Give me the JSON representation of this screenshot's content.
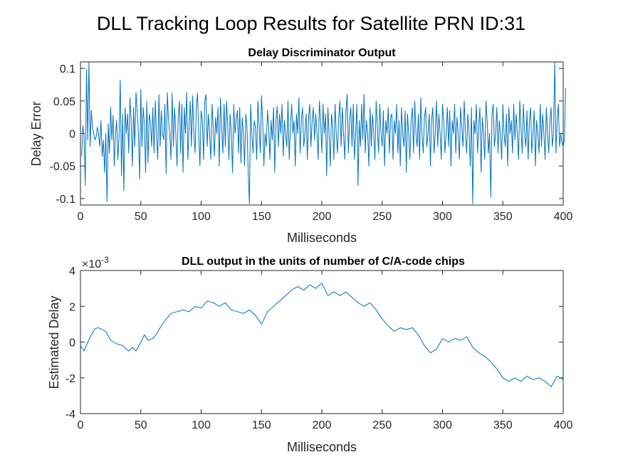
{
  "figure": {
    "title": "DLL Tracking Loop Results for Satellite PRN ID:31",
    "line_color": "#0072BD",
    "axis_color": "#262626"
  },
  "chart_data": [
    {
      "type": "line",
      "title": "Delay Discriminator Output",
      "xlabel": "Milliseconds",
      "ylabel": "Delay Error",
      "xlim": [
        0,
        400
      ],
      "ylim": [
        -0.11,
        0.11
      ],
      "xticks": [
        0,
        50,
        100,
        150,
        200,
        250,
        300,
        350,
        400
      ],
      "xtick_labels": [
        "0",
        "50",
        "100",
        "150",
        "200",
        "250",
        "300",
        "350",
        "400"
      ],
      "yticks": [
        -0.1,
        -0.05,
        0,
        0.05,
        0.1
      ],
      "ytick_labels": [
        "-0.1",
        "-0.05",
        "0",
        "0.05",
        "0.1"
      ],
      "grid": false,
      "series": [
        {
          "x_start": 1,
          "x_step": 1,
          "y": [
            -0.035,
            0.012,
            -0.005,
            -0.08,
            0.098,
            -0.01,
            0.11,
            -0.02,
            0.035,
            0.01,
            0.0,
            -0.01,
            -0.005,
            0.01,
            0.0,
            -0.02,
            0.02,
            -0.035,
            -0.01,
            -0.06,
            0.0,
            -0.105,
            0.015,
            -0.03,
            0.04,
            -0.01,
            0.028,
            -0.05,
            0.0,
            0.02,
            -0.04,
            -0.005,
            0.082,
            -0.065,
            0.03,
            -0.088,
            0.04,
            0.0,
            0.03,
            -0.03,
            0.055,
            0.02,
            -0.05,
            0.04,
            -0.02,
            0.063,
            0.035,
            0.0,
            -0.07,
            0.068,
            -0.02,
            0.04,
            0.015,
            -0.06,
            0.05,
            -0.045,
            0.03,
            0.018,
            -0.02,
            0.04,
            -0.03,
            0.05,
            0.0,
            -0.04,
            0.06,
            -0.02,
            0.035,
            0.0,
            -0.01,
            0.045,
            -0.062,
            0.063,
            0.02,
            0.0,
            -0.04,
            0.062,
            -0.02,
            0.04,
            0.0,
            -0.05,
            0.025,
            0.05,
            -0.03,
            0.045,
            -0.06,
            0.04,
            0.0,
            0.063,
            -0.04,
            0.01,
            0.05,
            -0.02,
            0.058,
            0.0,
            -0.03,
            0.04,
            0.062,
            0.0,
            -0.05,
            0.035,
            0.02,
            -0.04,
            0.05,
            0.06,
            -0.02,
            0.03,
            0.0,
            -0.04,
            0.045,
            0.01,
            -0.035,
            0.025,
            0.0,
            0.04,
            -0.05,
            0.055,
            0.01,
            -0.03,
            0.045,
            -0.02,
            0.05,
            0.015,
            -0.04,
            0.03,
            0.0,
            -0.06,
            0.045,
            0.0,
            0.02,
            0.035,
            -0.03,
            0.04,
            -0.045,
            0.025,
            0.0,
            -0.05,
            0.03,
            0.01,
            -0.06,
            -0.108,
            0.045,
            0.0,
            -0.03,
            0.02,
            0.01,
            -0.04,
            0.05,
            0.012,
            -0.03,
            0.058,
            0.02,
            -0.05,
            0.0,
            -0.02,
            0.035,
            0.01,
            -0.04,
            0.02,
            -0.01,
            0.04,
            -0.06,
            0.02,
            0.042,
            -0.02,
            0.03,
            0.0,
            0.045,
            -0.035,
            0.02,
            0.0,
            -0.02,
            0.05,
            -0.04,
            0.01,
            0.045,
            0.0,
            0.02,
            -0.05,
            0.03,
            0.0,
            0.055,
            -0.03,
            0.02,
            0.04,
            -0.02,
            0.0,
            0.03,
            -0.04,
            0.025,
            0.045,
            -0.02,
            0.02,
            0.04,
            -0.01,
            0.03,
            0.0,
            -0.04,
            0.05,
            0.02,
            -0.03,
            0.045,
            0.0,
            0.03,
            -0.065,
            0.04,
            0.0,
            -0.05,
            0.03,
            0.01,
            -0.04,
            0.045,
            0.0,
            -0.03,
            0.025,
            0.05,
            -0.02,
            0.04,
            0.0,
            -0.04,
            0.035,
            0.06,
            -0.03,
            0.02,
            0.04,
            -0.02,
            0.045,
            -0.04,
            0.0,
            0.045,
            -0.08,
            0.02,
            -0.02,
            0.045,
            -0.01,
            0.06,
            -0.03,
            0.02,
            0.0,
            -0.05,
            0.04,
            -0.02,
            0.03,
            0.0,
            -0.04,
            0.05,
            0.01,
            -0.03,
            0.045,
            0.0,
            -0.02,
            0.035,
            -0.05,
            0.02,
            0.0,
            0.04,
            -0.03,
            0.025,
            0.03,
            -0.04,
            0.02,
            0.0,
            0.045,
            -0.03,
            0.02,
            -0.05,
            0.04,
            0.0,
            -0.02,
            0.035,
            -0.06,
            0.03,
            0.0,
            -0.04,
            0.02,
            0.04,
            -0.03,
            0.05,
            0.0,
            -0.02,
            0.03,
            -0.04,
            0.055,
            0.0,
            -0.03,
            0.025,
            0.04,
            -0.02,
            0.0,
            0.03,
            -0.05,
            0.02,
            0.04,
            -0.03,
            0.0,
            0.05,
            -0.02,
            0.03,
            0.0,
            -0.04,
            0.045,
            0.02,
            -0.03,
            0.0,
            0.04,
            -0.02,
            0.035,
            -0.05,
            0.02,
            0.0,
            0.045,
            -0.03,
            0.025,
            0.0,
            -0.04,
            0.04,
            0.01,
            -0.02,
            0.05,
            0.0,
            -0.03,
            0.03,
            0.0,
            -0.05,
            0.04,
            -0.108,
            0.02,
            0.0,
            0.045,
            -0.03,
            0.01,
            0.04,
            -0.06,
            0.025,
            0.0,
            -0.04,
            0.05,
            0.02,
            -0.03,
            0.0,
            -0.098,
            0.03,
            0.045,
            -0.02,
            0.0,
            0.04,
            -0.03,
            0.02,
            0.0,
            -0.04,
            0.045,
            0.0,
            -0.02,
            0.03,
            -0.05,
            0.04,
            0.0,
            0.02,
            -0.03,
            0.045,
            -0.01,
            0.03,
            0.0,
            -0.04,
            0.05,
            0.01,
            -0.03,
            0.045,
            0.0,
            -0.02,
            0.035,
            -0.04,
            0.02,
            0.04,
            -0.03,
            0.0,
            0.035,
            -0.05,
            0.02,
            0.0,
            -0.03,
            0.045,
            -0.02,
            0.03,
            0.0,
            -0.04,
            0.04,
            0.0,
            -0.03,
            0.02,
            0.04,
            -0.02,
            0.0,
            0.113,
            -0.03,
            0.02,
            0.045,
            -0.02,
            0.0,
            -0.015,
            -0.02,
            -0.01,
            0.07
          ]
        }
      ]
    },
    {
      "type": "line",
      "title": "DLL output in the units of number of C/A-code chips",
      "xlabel": "Milliseconds",
      "ylabel": "Estimated Delay",
      "exponent_label": "×10",
      "exponent_power": "-3",
      "xlim": [
        0,
        400
      ],
      "ylim": [
        -4,
        4
      ],
      "y_multiplier": 0.001,
      "xticks": [
        0,
        50,
        100,
        150,
        200,
        250,
        300,
        350,
        400
      ],
      "xtick_labels": [
        "0",
        "50",
        "100",
        "150",
        "200",
        "250",
        "300",
        "350",
        "400"
      ],
      "yticks": [
        -4,
        -2,
        0,
        2,
        4
      ],
      "ytick_labels": [
        "-4",
        "-2",
        "0",
        "2",
        "4"
      ],
      "grid": false,
      "series": [
        {
          "x": [
            0,
            3,
            6,
            9,
            12,
            15,
            18,
            21,
            25,
            30,
            35,
            40,
            43,
            46,
            50,
            53,
            56,
            60,
            63,
            66,
            70,
            75,
            80,
            85,
            90,
            95,
            100,
            105,
            110,
            115,
            120,
            125,
            130,
            135,
            140,
            145,
            150,
            155,
            160,
            165,
            170,
            175,
            180,
            185,
            190,
            195,
            200,
            205,
            210,
            215,
            220,
            225,
            230,
            235,
            240,
            245,
            250,
            255,
            260,
            265,
            270,
            275,
            280,
            285,
            290,
            295,
            300,
            305,
            310,
            315,
            320,
            325,
            330,
            335,
            340,
            345,
            350,
            355,
            360,
            365,
            370,
            375,
            380,
            385,
            390,
            395,
            400
          ],
          "y": [
            -0.2,
            -0.5,
            0.0,
            0.4,
            0.75,
            0.8,
            0.7,
            0.6,
            0.1,
            -0.1,
            -0.2,
            -0.5,
            -0.3,
            -0.5,
            0.0,
            0.4,
            0.1,
            0.2,
            0.45,
            0.8,
            1.2,
            1.6,
            1.7,
            1.8,
            1.7,
            2.0,
            1.9,
            2.3,
            2.2,
            2.0,
            2.2,
            1.8,
            1.7,
            1.6,
            1.8,
            1.5,
            1.0,
            1.7,
            2.0,
            2.3,
            2.6,
            2.9,
            3.1,
            2.9,
            3.2,
            3.0,
            3.3,
            2.6,
            2.8,
            2.6,
            2.8,
            2.5,
            2.2,
            2.0,
            2.2,
            1.8,
            1.3,
            0.9,
            0.6,
            0.8,
            0.7,
            0.8,
            0.4,
            -0.2,
            -0.6,
            -0.4,
            0.2,
            0.0,
            0.2,
            0.1,
            0.3,
            -0.3,
            -0.6,
            -0.8,
            -1.1,
            -1.5,
            -2.0,
            -2.2,
            -2.0,
            -2.2,
            -1.9,
            -2.1,
            -2.0,
            -2.2,
            -2.5,
            -1.9,
            -2.1
          ]
        }
      ]
    }
  ]
}
